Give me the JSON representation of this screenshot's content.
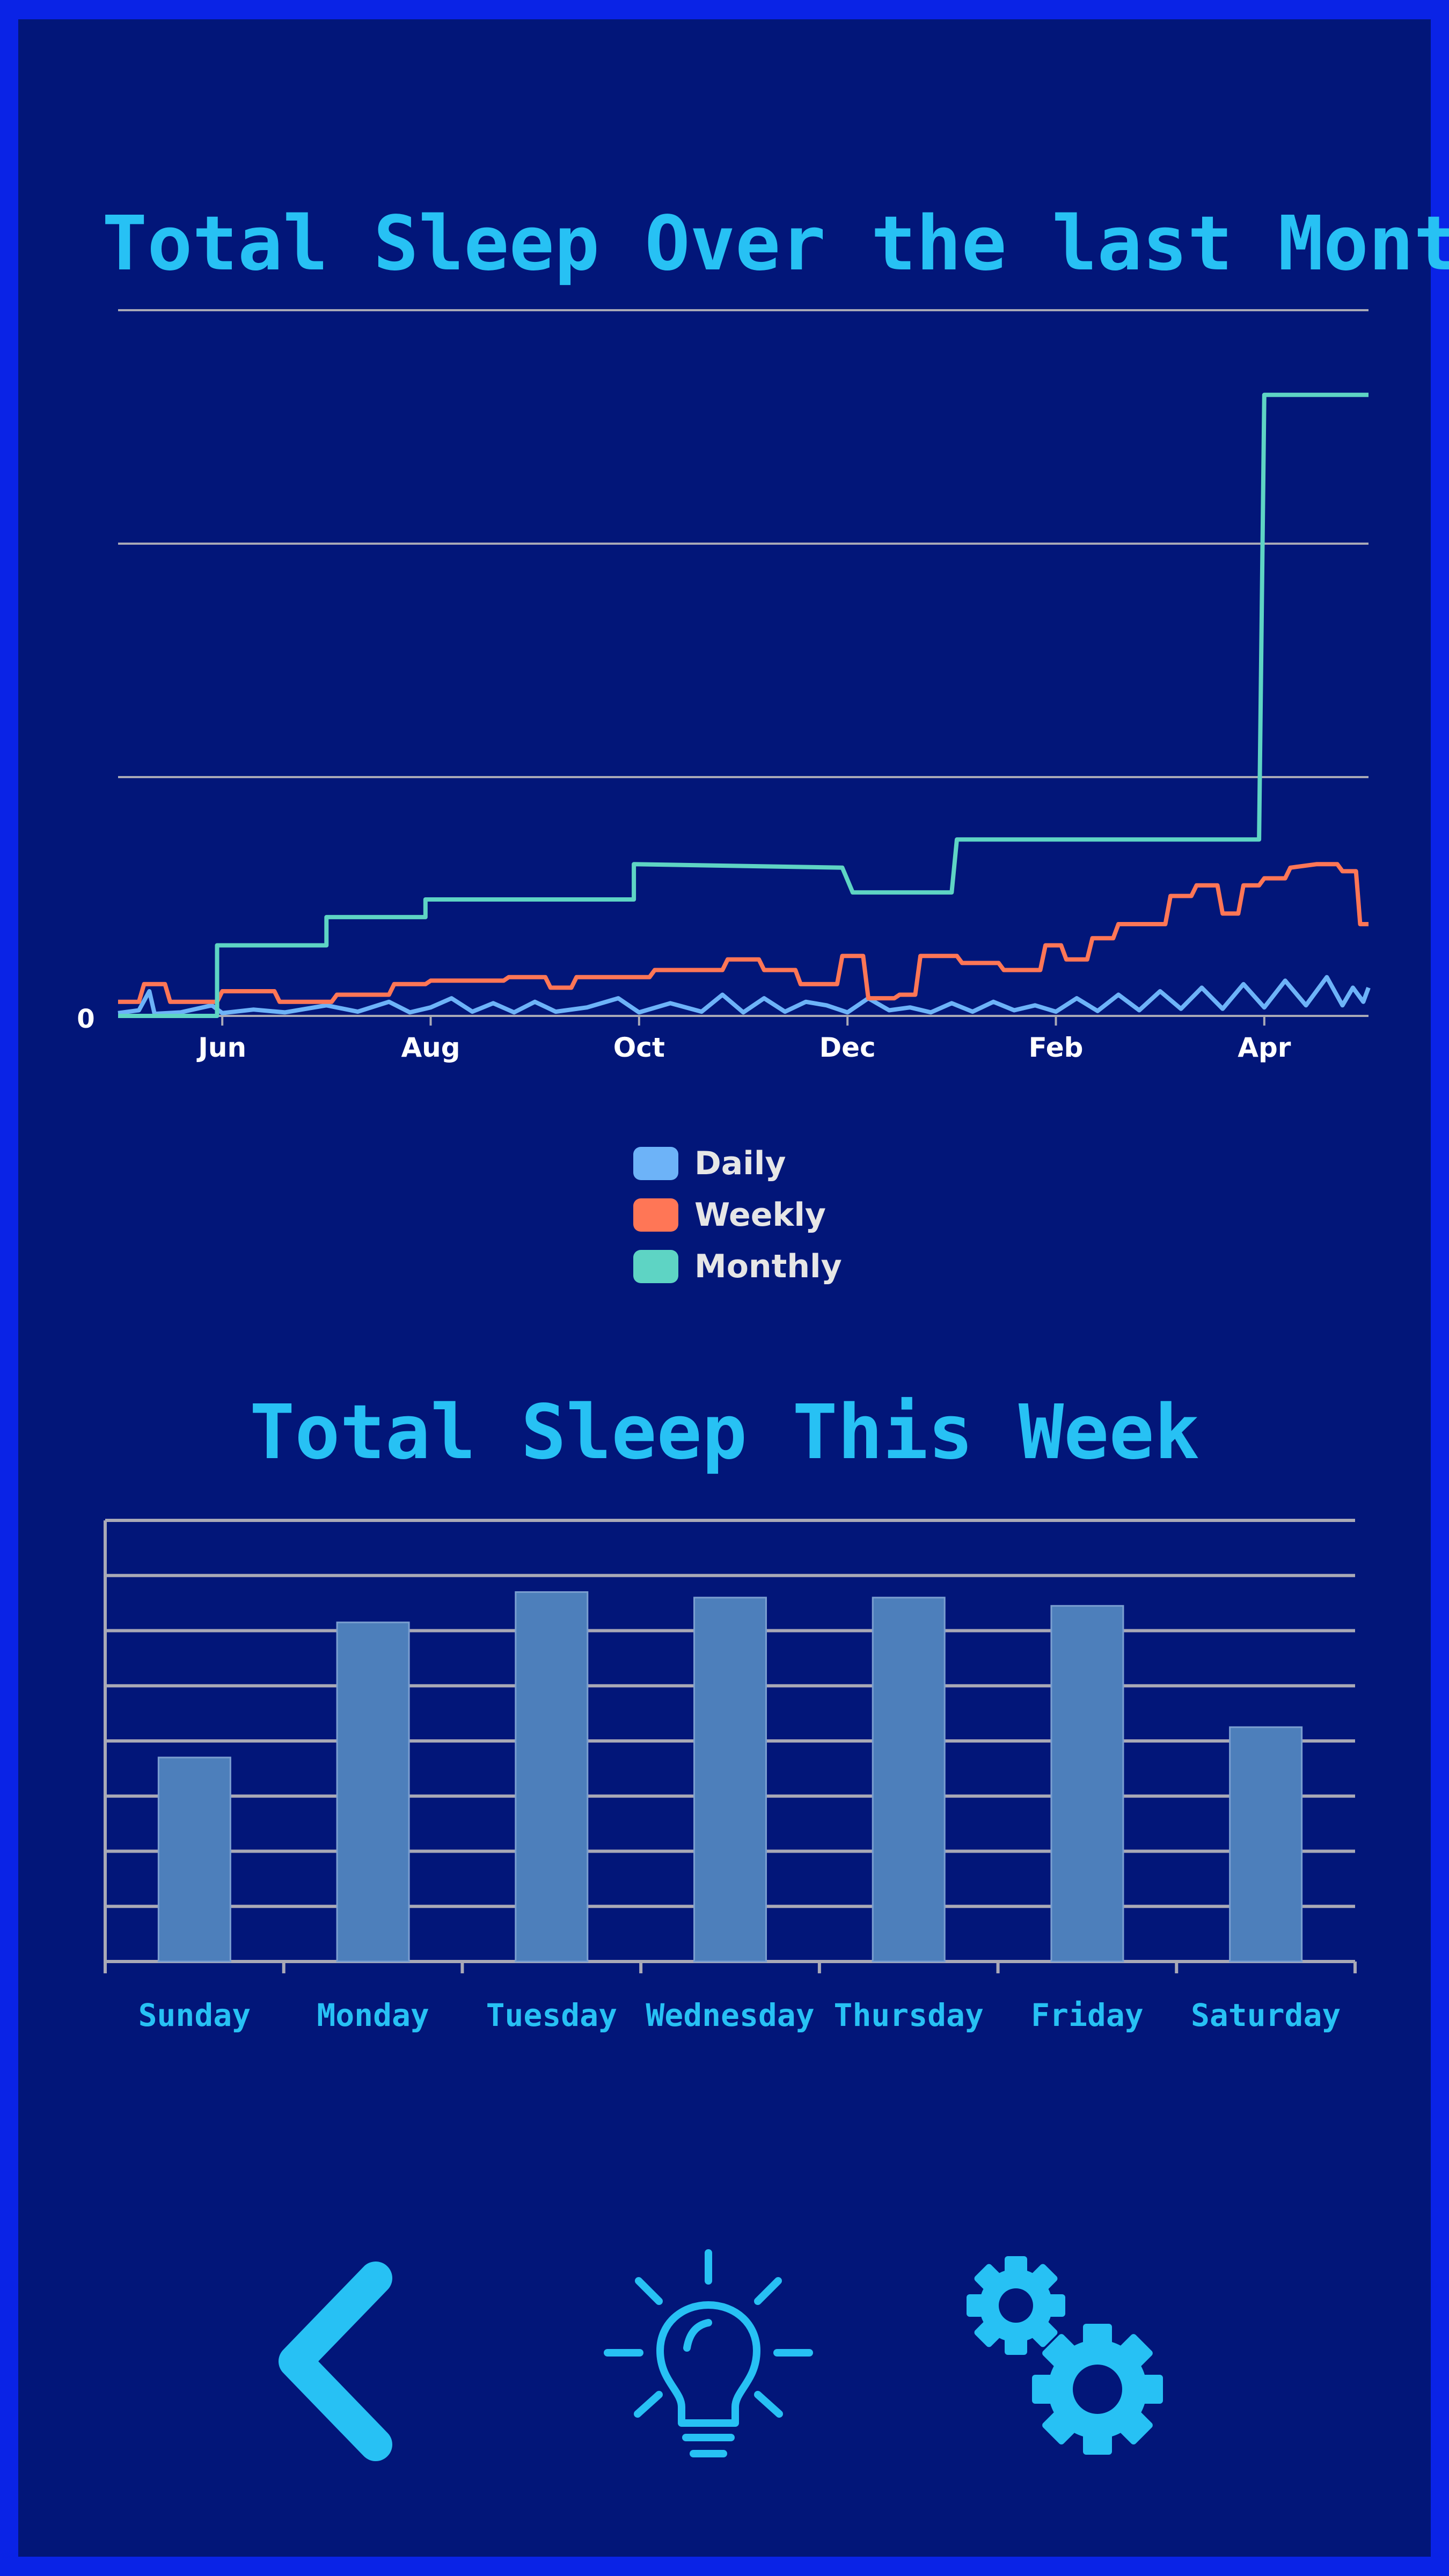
{
  "screen": {
    "month_title": "Total Sleep Over the last Month",
    "week_title": "Total Sleep This Week"
  },
  "legend": [
    {
      "label": "Daily",
      "color": "#6db3f8"
    },
    {
      "label": "Weekly",
      "color": "#ff7656"
    },
    {
      "label": "Monthly",
      "color": "#5ed4c4"
    }
  ],
  "nav": {
    "back_icon": "chevron-left-icon",
    "tips_icon": "lightbulb-icon",
    "settings_icon": "gears-icon",
    "icon_color": "#27c1f4"
  },
  "chart_data": [
    {
      "type": "line",
      "title": "Total Sleep Over the last Month",
      "y_tick_labels": [
        "0"
      ],
      "x_tick_labels": [
        "Jun",
        "Aug",
        "Oct",
        "Dec",
        "Feb",
        "Apr"
      ],
      "x_range": [
        0,
        12
      ],
      "y_range": [
        0,
        100
      ],
      "grid": true,
      "legend_position": "bottom-center",
      "series": [
        {
          "name": "Monthly",
          "color": "#5ed4c4",
          "points": [
            [
              0,
              0
            ],
            [
              0.95,
              0
            ],
            [
              0.95,
              10
            ],
            [
              2.0,
              10
            ],
            [
              2.0,
              14
            ],
            [
              2.95,
              14
            ],
            [
              2.95,
              16.5
            ],
            [
              4.95,
              16.5
            ],
            [
              4.95,
              21.5
            ],
            [
              6.95,
              21
            ],
            [
              7.05,
              17.5
            ],
            [
              8.0,
              17.5
            ],
            [
              8.05,
              25
            ],
            [
              10.95,
              25
            ],
            [
              11.0,
              88
            ],
            [
              12,
              88
            ]
          ]
        },
        {
          "name": "Weekly",
          "color": "#ff7656",
          "points": [
            [
              0,
              2
            ],
            [
              0.2,
              2
            ],
            [
              0.25,
              4.5
            ],
            [
              0.45,
              4.5
            ],
            [
              0.5,
              2
            ],
            [
              0.95,
              2
            ],
            [
              1.0,
              3.5
            ],
            [
              1.5,
              3.5
            ],
            [
              1.55,
              2
            ],
            [
              2.05,
              2
            ],
            [
              2.1,
              3
            ],
            [
              2.6,
              3
            ],
            [
              2.65,
              4.5
            ],
            [
              2.95,
              4.5
            ],
            [
              3.0,
              5
            ],
            [
              3.7,
              5
            ],
            [
              3.75,
              5.5
            ],
            [
              4.1,
              5.5
            ],
            [
              4.15,
              4
            ],
            [
              4.35,
              4
            ],
            [
              4.4,
              5.5
            ],
            [
              5.1,
              5.5
            ],
            [
              5.15,
              6.5
            ],
            [
              5.8,
              6.5
            ],
            [
              5.85,
              8
            ],
            [
              6.15,
              8
            ],
            [
              6.2,
              6.5
            ],
            [
              6.5,
              6.5
            ],
            [
              6.55,
              4.5
            ],
            [
              6.9,
              4.5
            ],
            [
              6.95,
              8.5
            ],
            [
              7.15,
              8.5
            ],
            [
              7.2,
              2.5
            ],
            [
              7.45,
              2.5
            ],
            [
              7.5,
              3
            ],
            [
              7.65,
              3
            ],
            [
              7.7,
              8.5
            ],
            [
              8.05,
              8.5
            ],
            [
              8.1,
              7.5
            ],
            [
              8.45,
              7.5
            ],
            [
              8.5,
              6.5
            ],
            [
              8.85,
              6.5
            ],
            [
              8.9,
              10
            ],
            [
              9.05,
              10
            ],
            [
              9.1,
              8
            ],
            [
              9.3,
              8
            ],
            [
              9.35,
              11
            ],
            [
              9.55,
              11
            ],
            [
              9.6,
              13
            ],
            [
              10.05,
              13
            ],
            [
              10.1,
              17
            ],
            [
              10.3,
              17
            ],
            [
              10.35,
              18.5
            ],
            [
              10.55,
              18.5
            ],
            [
              10.6,
              14.5
            ],
            [
              10.75,
              14.5
            ],
            [
              10.8,
              18.5
            ],
            [
              10.95,
              18.5
            ],
            [
              11.0,
              19.5
            ],
            [
              11.2,
              19.5
            ],
            [
              11.25,
              21
            ],
            [
              11.5,
              21.5
            ],
            [
              11.7,
              21.5
            ],
            [
              11.75,
              20.5
            ],
            [
              11.88,
              20.5
            ],
            [
              11.92,
              13
            ],
            [
              12,
              13
            ]
          ]
        },
        {
          "name": "Daily",
          "color": "#6db3f8",
          "points": [
            [
              0,
              0.4
            ],
            [
              0.2,
              0.8
            ],
            [
              0.3,
              3.5
            ],
            [
              0.35,
              0.3
            ],
            [
              0.6,
              0.5
            ],
            [
              0.9,
              1.5
            ],
            [
              1.0,
              0.4
            ],
            [
              1.3,
              0.9
            ],
            [
              1.6,
              0.5
            ],
            [
              2.0,
              1.5
            ],
            [
              2.3,
              0.6
            ],
            [
              2.6,
              2
            ],
            [
              2.8,
              0.5
            ],
            [
              3.0,
              1.2
            ],
            [
              3.2,
              2.5
            ],
            [
              3.4,
              0.6
            ],
            [
              3.6,
              1.8
            ],
            [
              3.8,
              0.5
            ],
            [
              4.0,
              2
            ],
            [
              4.2,
              0.6
            ],
            [
              4.5,
              1.2
            ],
            [
              4.8,
              2.5
            ],
            [
              5.0,
              0.5
            ],
            [
              5.3,
              1.8
            ],
            [
              5.6,
              0.6
            ],
            [
              5.8,
              3
            ],
            [
              6.0,
              0.5
            ],
            [
              6.2,
              2.5
            ],
            [
              6.4,
              0.6
            ],
            [
              6.6,
              2
            ],
            [
              6.8,
              1.5
            ],
            [
              7.0,
              0.5
            ],
            [
              7.2,
              2.5
            ],
            [
              7.4,
              0.8
            ],
            [
              7.6,
              1.2
            ],
            [
              7.8,
              0.5
            ],
            [
              8.0,
              1.8
            ],
            [
              8.2,
              0.6
            ],
            [
              8.4,
              2
            ],
            [
              8.6,
              0.8
            ],
            [
              8.8,
              1.5
            ],
            [
              9.0,
              0.6
            ],
            [
              9.2,
              2.5
            ],
            [
              9.4,
              0.7
            ],
            [
              9.6,
              3
            ],
            [
              9.8,
              0.8
            ],
            [
              10.0,
              3.5
            ],
            [
              10.2,
              1
            ],
            [
              10.4,
              4
            ],
            [
              10.6,
              1
            ],
            [
              10.8,
              4.5
            ],
            [
              11.0,
              1.2
            ],
            [
              11.2,
              5
            ],
            [
              11.4,
              1.5
            ],
            [
              11.6,
              5.5
            ],
            [
              11.75,
              1.5
            ],
            [
              11.85,
              4
            ],
            [
              11.95,
              2
            ],
            [
              12,
              4
            ]
          ]
        }
      ]
    },
    {
      "type": "bar",
      "title": "Total Sleep This Week",
      "categories": [
        "Sunday",
        "Monday",
        "Tuesday",
        "Wednesday",
        "Thursday",
        "Friday",
        "Saturday"
      ],
      "values": [
        3.7,
        6.15,
        6.7,
        6.6,
        6.6,
        6.45,
        4.25
      ],
      "ylim": [
        0,
        8
      ],
      "grid": true
    }
  ]
}
